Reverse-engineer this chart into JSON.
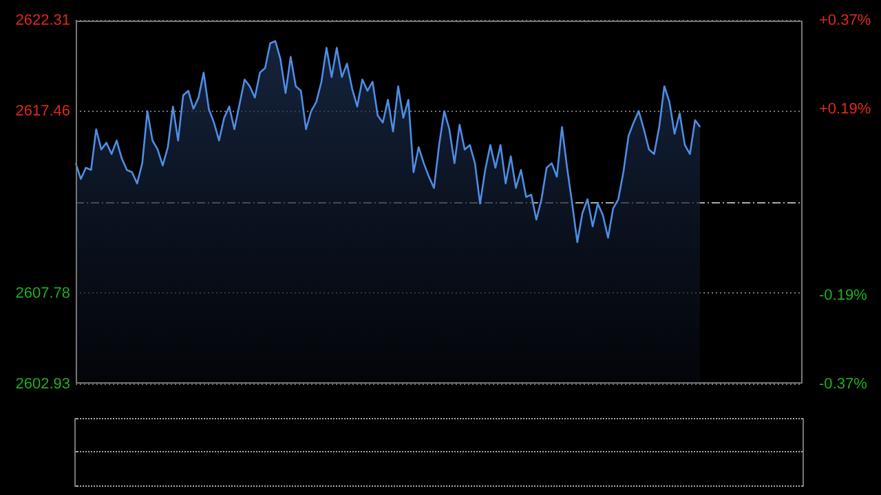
{
  "chart_data": {
    "type": "area",
    "categories": [
      null,
      null,
      null,
      null,
      null,
      null,
      null,
      null,
      null,
      null,
      null,
      null,
      null,
      null,
      null,
      null,
      null,
      null,
      null,
      null,
      null,
      null,
      null,
      null,
      null,
      null,
      null,
      null,
      null,
      null,
      null,
      null,
      null,
      null,
      null,
      null,
      null,
      null,
      null,
      null,
      null,
      null,
      null,
      null,
      null,
      null,
      null,
      null,
      null,
      null,
      null,
      null,
      null,
      null,
      null,
      null,
      null,
      null,
      null,
      null,
      null,
      null,
      null,
      null,
      null,
      null,
      null,
      null,
      null,
      null,
      null,
      null,
      null,
      null,
      null,
      null,
      null,
      null,
      null,
      null,
      null,
      null,
      null,
      null,
      null,
      null,
      null,
      null,
      null,
      null,
      null,
      null,
      null,
      null,
      null,
      null,
      null,
      null,
      null,
      null,
      null,
      null,
      null,
      null,
      null,
      null,
      null,
      null,
      null,
      null,
      null,
      null,
      null,
      null,
      null,
      null,
      null,
      null,
      null,
      null,
      null,
      null,
      null,
      null,
      null,
      null,
      null,
      null,
      null,
      null,
      null,
      null,
      null,
      null,
      null,
      null,
      null,
      null,
      null,
      null,
      null,
      null,
      null
    ],
    "series": [
      {
        "color": "#4d8ee6",
        "values": [
          2614.71,
          2613.87,
          2614.47,
          2614.35,
          2616.52,
          2615.44,
          2615.8,
          2615.2,
          2615.92,
          2614.96,
          2614.35,
          2614.23,
          2613.63,
          2614.71,
          2617.49,
          2615.92,
          2615.44,
          2614.59,
          2615.56,
          2617.73,
          2615.92,
          2618.33,
          2618.57,
          2617.61,
          2618.21,
          2619.54,
          2617.61,
          2616.88,
          2615.92,
          2617.13,
          2617.73,
          2616.52,
          2617.85,
          2619.17,
          2618.81,
          2618.21,
          2619.54,
          2619.78,
          2621.1,
          2621.22,
          2620.26,
          2618.45,
          2620.38,
          2618.81,
          2618.57,
          2616.52,
          2617.49,
          2617.97,
          2619.05,
          2620.86,
          2619.3,
          2620.86,
          2619.3,
          2620.02,
          2618.69,
          2617.73,
          2619.17,
          2618.57,
          2619.05,
          2617.25,
          2616.88,
          2618.09,
          2616.4,
          2618.81,
          2617.13,
          2618.09,
          2614.23,
          2615.56,
          2614.71,
          2613.99,
          2613.39,
          2615.68,
          2617.49,
          2616.52,
          2614.71,
          2616.76,
          2615.44,
          2615.68,
          2614.71,
          2612.55,
          2614.35,
          2615.68,
          2614.47,
          2615.68,
          2613.63,
          2615.08,
          2613.39,
          2614.35,
          2612.91,
          2613.03,
          2611.7,
          2612.79,
          2614.47,
          2614.71,
          2613.99,
          2616.64,
          2614.47,
          2612.55,
          2610.5,
          2612.06,
          2612.79,
          2611.34,
          2612.55,
          2611.94,
          2610.74,
          2612.3,
          2612.79,
          2614.23,
          2616.16,
          2616.88,
          2617.49,
          2616.52,
          2615.44,
          2615.2,
          2616.64,
          2618.81,
          2617.97,
          2616.28,
          2617.37,
          2615.68,
          2615.2,
          2617.0,
          2616.64,
          null,
          null,
          null,
          null,
          null,
          null,
          null,
          null,
          null,
          null,
          null,
          null,
          null,
          null,
          null,
          null,
          null,
          null,
          null,
          null
        ]
      }
    ],
    "ylim": [
      2602.93,
      2622.31
    ],
    "yticks": [
      2602.93,
      2607.78,
      2617.46,
      2622.31
    ],
    "y2lim": [
      -0.37,
      0.37
    ],
    "y2ticks": [
      {
        "value": -0.37,
        "label": "-0.37%"
      },
      {
        "value": -0.19,
        "label": "-0.19%"
      },
      {
        "value": 0.19,
        "label": "+0.19%"
      },
      {
        "value": 0.37,
        "label": "+0.37%"
      }
    ],
    "ref_lines": [
      {
        "axis": "y",
        "value": 2612.62,
        "color": "#aaaaaa",
        "line_style": "dashed"
      }
    ],
    "grid": "y",
    "marker": "none",
    "line_style": "solid"
  }
}
